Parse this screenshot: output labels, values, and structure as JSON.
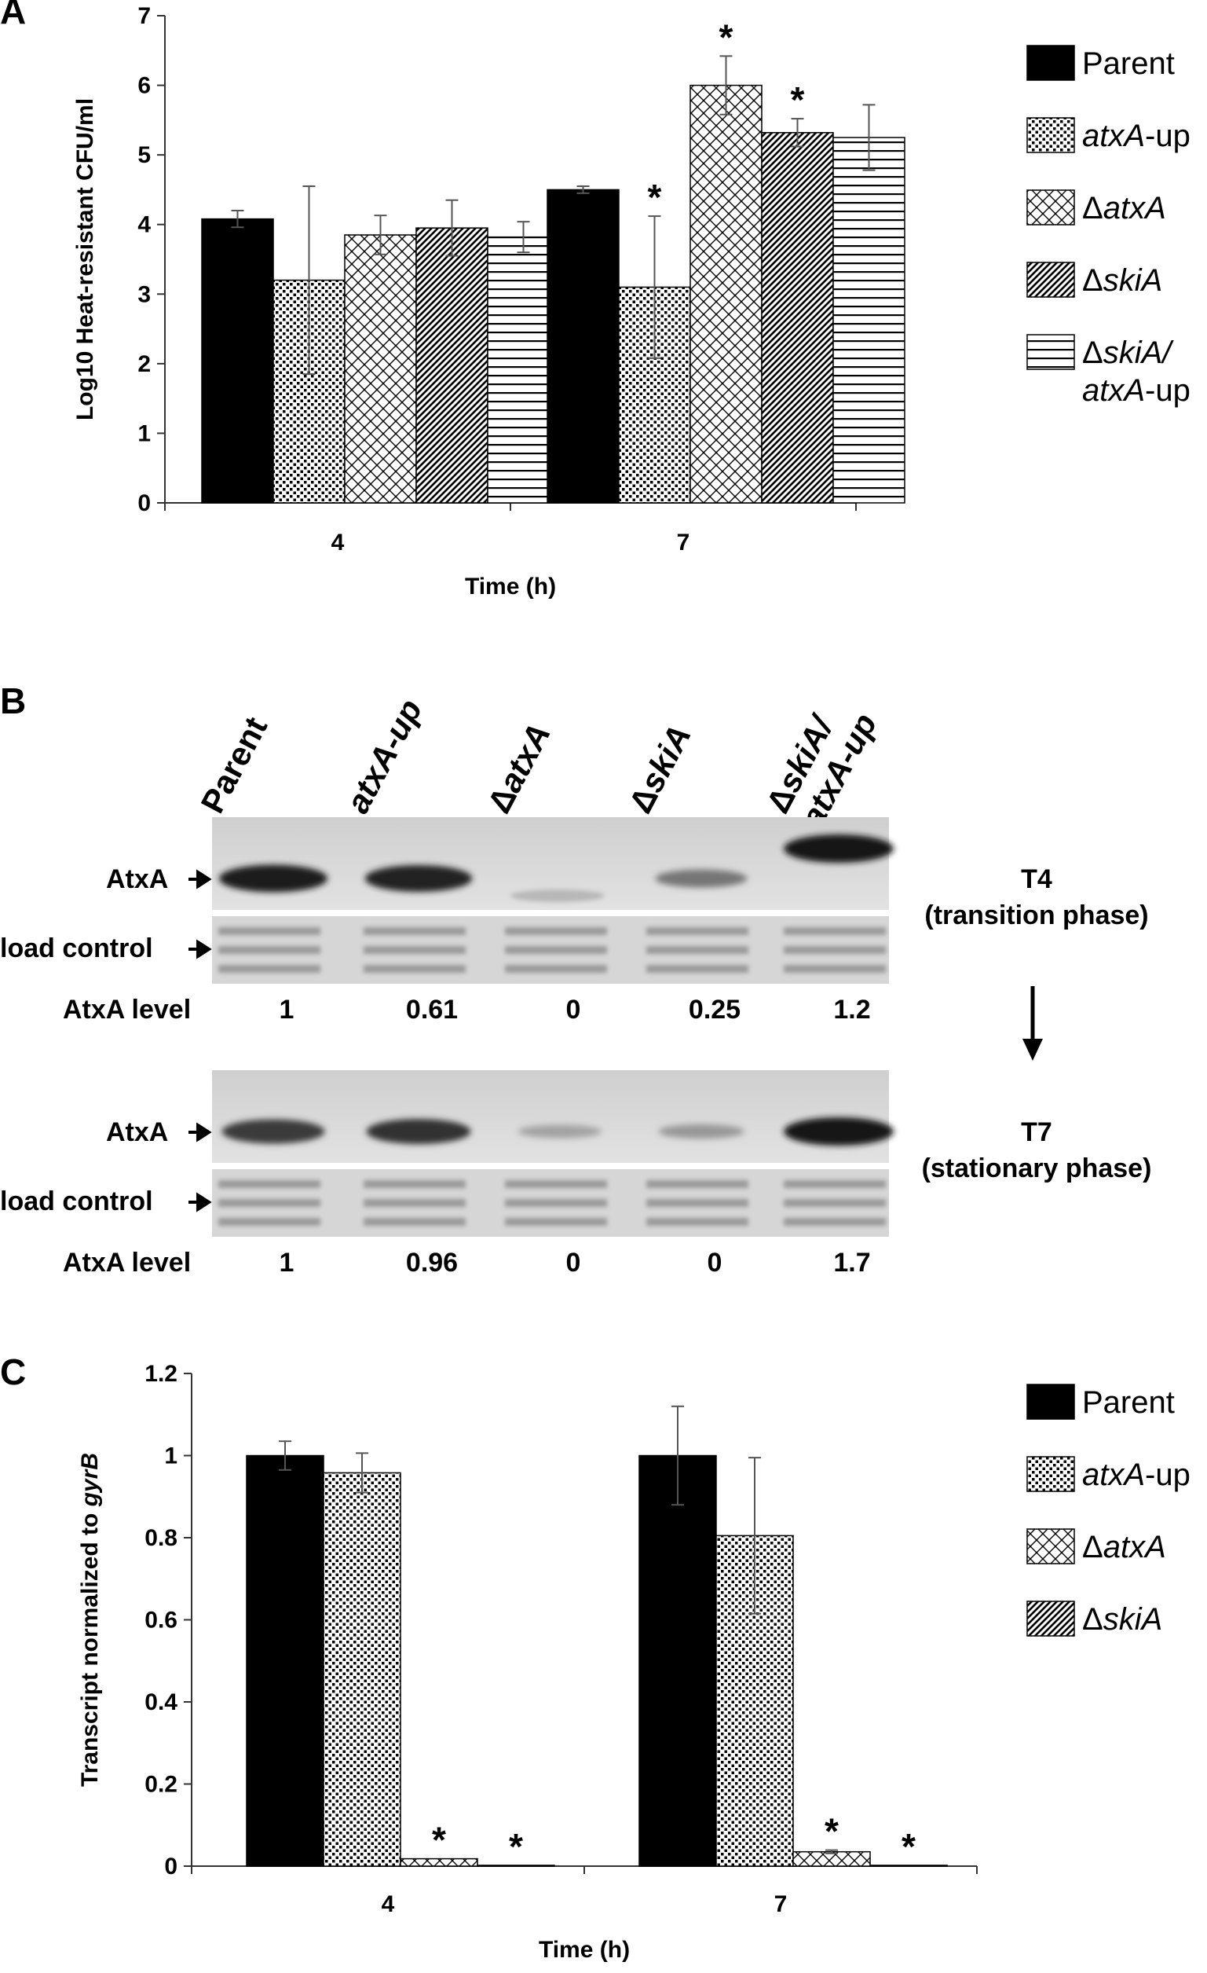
{
  "panels": {
    "A": "A",
    "B": "B",
    "C": "C"
  },
  "chart_data": [
    {
      "panel": "A",
      "type": "bar",
      "ylabel": "Log10 Heat-resistant CFU/ml",
      "xlabel": "Time (h)",
      "categories": [
        "4",
        "7"
      ],
      "ylim": [
        0,
        7
      ],
      "yticks": [
        "0",
        "1",
        "2",
        "3",
        "4",
        "5",
        "6",
        "7"
      ],
      "legend_position": "right",
      "series": [
        {
          "name": "Parent",
          "pattern": "solid",
          "values": [
            4.08,
            4.5
          ],
          "errors": [
            0.12,
            0.05
          ],
          "stars": [
            false,
            false
          ]
        },
        {
          "name": "atxA-up",
          "pattern": "dots",
          "values": [
            3.2,
            3.1
          ],
          "errors": [
            1.35,
            1.02
          ],
          "stars": [
            false,
            true
          ]
        },
        {
          "name": "ΔatxA",
          "pattern": "crosshatch",
          "values": [
            3.85,
            6.0
          ],
          "errors": [
            0.28,
            0.42
          ],
          "stars": [
            false,
            true
          ]
        },
        {
          "name": "ΔskiA",
          "pattern": "diagonal",
          "values": [
            3.95,
            5.32
          ],
          "errors": [
            0.4,
            0.2
          ],
          "stars": [
            false,
            true
          ]
        },
        {
          "name": "ΔskiA/\natxA-up",
          "pattern": "horizontal",
          "values": [
            3.82,
            5.25
          ],
          "errors": [
            0.22,
            0.47
          ],
          "stars": [
            false,
            false
          ]
        }
      ],
      "legend": [
        {
          "italic": "",
          "plain": "Parent",
          "delta": false
        },
        {
          "italic": "atxA",
          "plain": "-up",
          "delta": false
        },
        {
          "italic": "atxA",
          "plain": "",
          "delta": true
        },
        {
          "italic": "skiA",
          "plain": "",
          "delta": true
        },
        {
          "italic": "skiA/",
          "plain": "",
          "delta": true,
          "line2_italic": "atxA",
          "line2_plain": "-up"
        }
      ],
      "star_symbol": "*"
    },
    {
      "panel": "C",
      "type": "bar",
      "ylabel": "Transcript normalized to gyrB",
      "ylabel_plain": "Transcript normalized to ",
      "ylabel_italic": "gyrB",
      "xlabel": "Time (h)",
      "categories": [
        "4",
        "7"
      ],
      "ylim": [
        0,
        1.2
      ],
      "yticks": [
        "0",
        "0.2",
        "0.4",
        "0.6",
        "0.8",
        "1",
        "1.2"
      ],
      "legend_position": "right",
      "series": [
        {
          "name": "Parent",
          "pattern": "solid",
          "values": [
            1.0,
            1.0
          ],
          "errors": [
            0.035,
            0.12
          ],
          "stars": [
            false,
            false
          ]
        },
        {
          "name": "atxA-up",
          "pattern": "dots",
          "values": [
            0.958,
            0.805
          ],
          "errors": [
            0.048,
            0.19
          ],
          "stars": [
            false,
            false
          ]
        },
        {
          "name": "ΔatxA",
          "pattern": "crosshatch",
          "values": [
            0.018,
            0.035
          ],
          "errors": [
            0.0,
            0.004
          ],
          "stars": [
            true,
            true
          ]
        },
        {
          "name": "ΔskiA",
          "pattern": "diagonal",
          "values": [
            0.002,
            0.002
          ],
          "errors": [
            0.0,
            0.0
          ],
          "stars": [
            true,
            true
          ]
        }
      ],
      "legend": [
        {
          "italic": "",
          "plain": "Parent",
          "delta": false
        },
        {
          "italic": "atxA",
          "plain": "-up",
          "delta": false
        },
        {
          "italic": "atxA",
          "plain": "",
          "delta": true
        },
        {
          "italic": "skiA",
          "plain": "",
          "delta": true
        }
      ],
      "star_symbol": "*"
    }
  ],
  "blot": {
    "lanes": [
      {
        "italic": "",
        "plain": "Parent",
        "delta": false
      },
      {
        "italic": "atxA-up",
        "plain": "",
        "delta": false
      },
      {
        "italic": "atxA",
        "plain": "",
        "delta": true
      },
      {
        "italic": "skiA",
        "plain": "",
        "delta": true
      },
      {
        "italic": "skiA/",
        "plain": "",
        "delta": true,
        "line2": "atxA-up"
      }
    ],
    "row_labels": {
      "atxa": "AtxA",
      "load_control": "load control",
      "atxa_level": "AtxA level"
    },
    "t4": {
      "title": "T4",
      "subtitle": "(transition phase)",
      "levels": [
        "1",
        "0.61",
        "0",
        "0.25",
        "1.2"
      ],
      "band_intensity": [
        0.95,
        0.9,
        0.0,
        0.35,
        1.0
      ]
    },
    "t7": {
      "title": "T7",
      "subtitle": "(stationary phase)",
      "levels": [
        "1",
        "0.96",
        "0",
        "0",
        "1.7"
      ],
      "band_intensity": [
        0.75,
        0.8,
        0.05,
        0.12,
        1.0
      ]
    },
    "delta_symbol": "Δ"
  }
}
